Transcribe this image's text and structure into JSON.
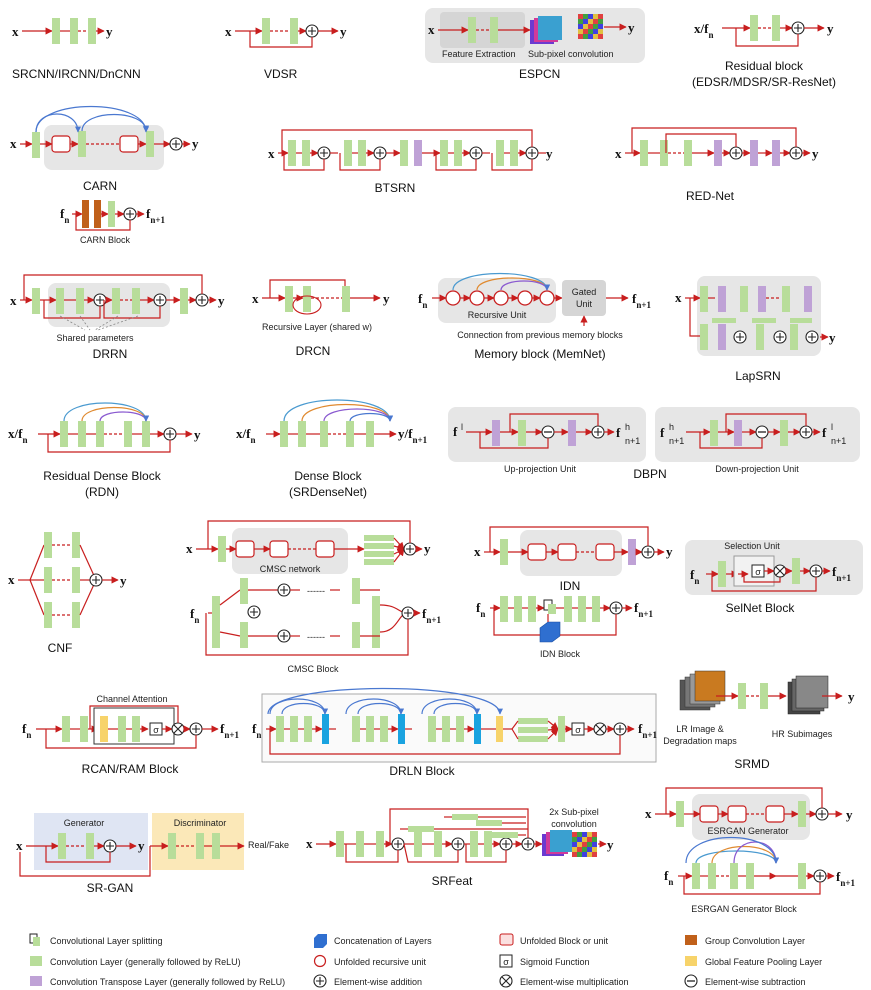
{
  "panels": {
    "srcnn": {
      "caption": "SRCNN/IRCNN/DnCNN",
      "in": "x",
      "out": "y"
    },
    "vdsr": {
      "caption": "VDSR",
      "in": "x",
      "out": "y"
    },
    "espcn": {
      "caption": "ESPCN",
      "in": "x",
      "out": "y",
      "label_a": "Feature Extraction",
      "label_b": "Sub-pixel convolution"
    },
    "resblock": {
      "caption1": "Residual block",
      "caption2": "(EDSR/MDSR/SR-ResNet)",
      "in": "x/f",
      "in_sub": "n",
      "out": "y"
    },
    "carn": {
      "caption": "CARN",
      "in": "x",
      "out": "y",
      "block_caption": "CARN Block",
      "block_in": "f",
      "block_in_sub": "n",
      "block_out": "f",
      "block_out_sub": "n+1"
    },
    "btsrn": {
      "caption": "BTSRN",
      "in": "x",
      "out": "y"
    },
    "rednet": {
      "caption": "RED-Net",
      "in": "x",
      "out": "y"
    },
    "drrn": {
      "caption": "DRRN",
      "in": "x",
      "out": "y",
      "note": "Shared parameters"
    },
    "drcn": {
      "caption": "DRCN",
      "in": "x",
      "out": "y",
      "note": "Recursive Layer (shared w)"
    },
    "memnet": {
      "caption": "Memory block (MemNet)",
      "in": "f",
      "in_sub": "n",
      "out": "f",
      "out_sub": "n+1",
      "unit_label": "Recursive Unit",
      "gate_line1": "Gated",
      "gate_line2": "Unit",
      "note": "Connection from previous memory blocks"
    },
    "lapsrn": {
      "caption": "LapSRN",
      "in": "x",
      "out": "y"
    },
    "rdn": {
      "caption1": "Residual Dense Block",
      "caption2": "(RDN)",
      "in": "x/f",
      "in_sub": "n",
      "out": "y"
    },
    "srdensenet": {
      "caption1": "Dense Block",
      "caption2": "(SRDenseNet)",
      "in": "x/f",
      "in_sub": "n",
      "out": "y/f",
      "out_sub": "n+1"
    },
    "dbpn": {
      "caption": "DBPN",
      "up_label": "Up-projection Unit",
      "down_label": "Down-projection Unit",
      "up_in": "f",
      "up_out": "f",
      "down_in": "f",
      "down_out": "f"
    },
    "cnf": {
      "caption": "CNF",
      "in": "x",
      "out": "y"
    },
    "cmsc": {
      "net_label": "CMSC network",
      "block_caption": "CMSC Block",
      "in": "x",
      "out": "y",
      "block_in": "f",
      "block_in_sub": "n",
      "block_out": "f",
      "block_out_sub": "n+1"
    },
    "idn": {
      "caption": "IDN",
      "block_caption": "IDN Block",
      "in": "x",
      "out": "y",
      "block_in": "f",
      "block_in_sub": "n",
      "block_out": "f",
      "block_out_sub": "n+1"
    },
    "selnet": {
      "caption": "SelNet Block",
      "unit_label": "Selection Unit",
      "in": "f",
      "in_sub": "n",
      "out": "f",
      "out_sub": "n+1",
      "sigma": "σ"
    },
    "rcan": {
      "caption": "RCAN/RAM Block",
      "attn_label": "Channel Attention",
      "in": "f",
      "in_sub": "n",
      "out": "f",
      "out_sub": "n+1",
      "sigma": "σ"
    },
    "drln": {
      "caption": "DRLN Block",
      "in": "f",
      "in_sub": "n",
      "out": "f",
      "out_sub": "n+1",
      "sigma": "σ"
    },
    "srmd": {
      "caption": "SRMD",
      "lr_line1": "LR Image  &",
      "lr_line2": "Degradation maps",
      "hr_label": "HR Subimages",
      "out": "y"
    },
    "srgan": {
      "caption": "SR-GAN",
      "gen_label": "Generator",
      "disc_label": "Discriminator",
      "rf_label": "Real/Fake",
      "in": "x",
      "out": "y"
    },
    "srfeat": {
      "caption": "SRFeat",
      "subpix_line1": "2x Sub-pixel",
      "subpix_line2": "convolution",
      "in": "x",
      "out": "y"
    },
    "esrgan": {
      "gen_label": "ESRGAN Generator",
      "block_caption": "ESRGAN Generator Block",
      "in": "x",
      "out": "y",
      "block_in": "f",
      "block_in_sub": "n",
      "block_out": "f",
      "block_out_sub": "n+1"
    }
  },
  "legend": [
    {
      "symbol": "split",
      "label": "Convolutional Layer splitting"
    },
    {
      "symbol": "conv",
      "label": "Convolution Layer (generally followed by ReLU)"
    },
    {
      "symbol": "deconv",
      "label": "Convolution Transpose Layer (generally followed by ReLU)"
    },
    {
      "symbol": "concat",
      "label": "Concatenation of Layers"
    },
    {
      "symbol": "recursive",
      "label": "Unfolded recursive unit"
    },
    {
      "symbol": "add",
      "label": "Element-wise addition"
    },
    {
      "symbol": "block",
      "label": "Unfolded Block or unit"
    },
    {
      "symbol": "sigmoid",
      "label": "Sigmoid Function"
    },
    {
      "symbol": "mul",
      "label": "Element-wise multiplication"
    },
    {
      "symbol": "group",
      "label": "Group Convolution Layer"
    },
    {
      "symbol": "pool",
      "label": "Global Feature Pooling Layer"
    },
    {
      "symbol": "sub",
      "label": "Element-wise subtraction"
    }
  ],
  "colors": {
    "conv": "#b8dd9a",
    "deconv": "#bfa2d6",
    "arrow": "#c81e1e",
    "panel": "#e6e6e6",
    "concat": "#2f6fd0",
    "pool": "#f7d36a",
    "group": "#c0601a",
    "dense_blue": "#1aa3e0",
    "gen_bg": "#dfe5f3",
    "disc_bg": "#fbe8b8"
  }
}
